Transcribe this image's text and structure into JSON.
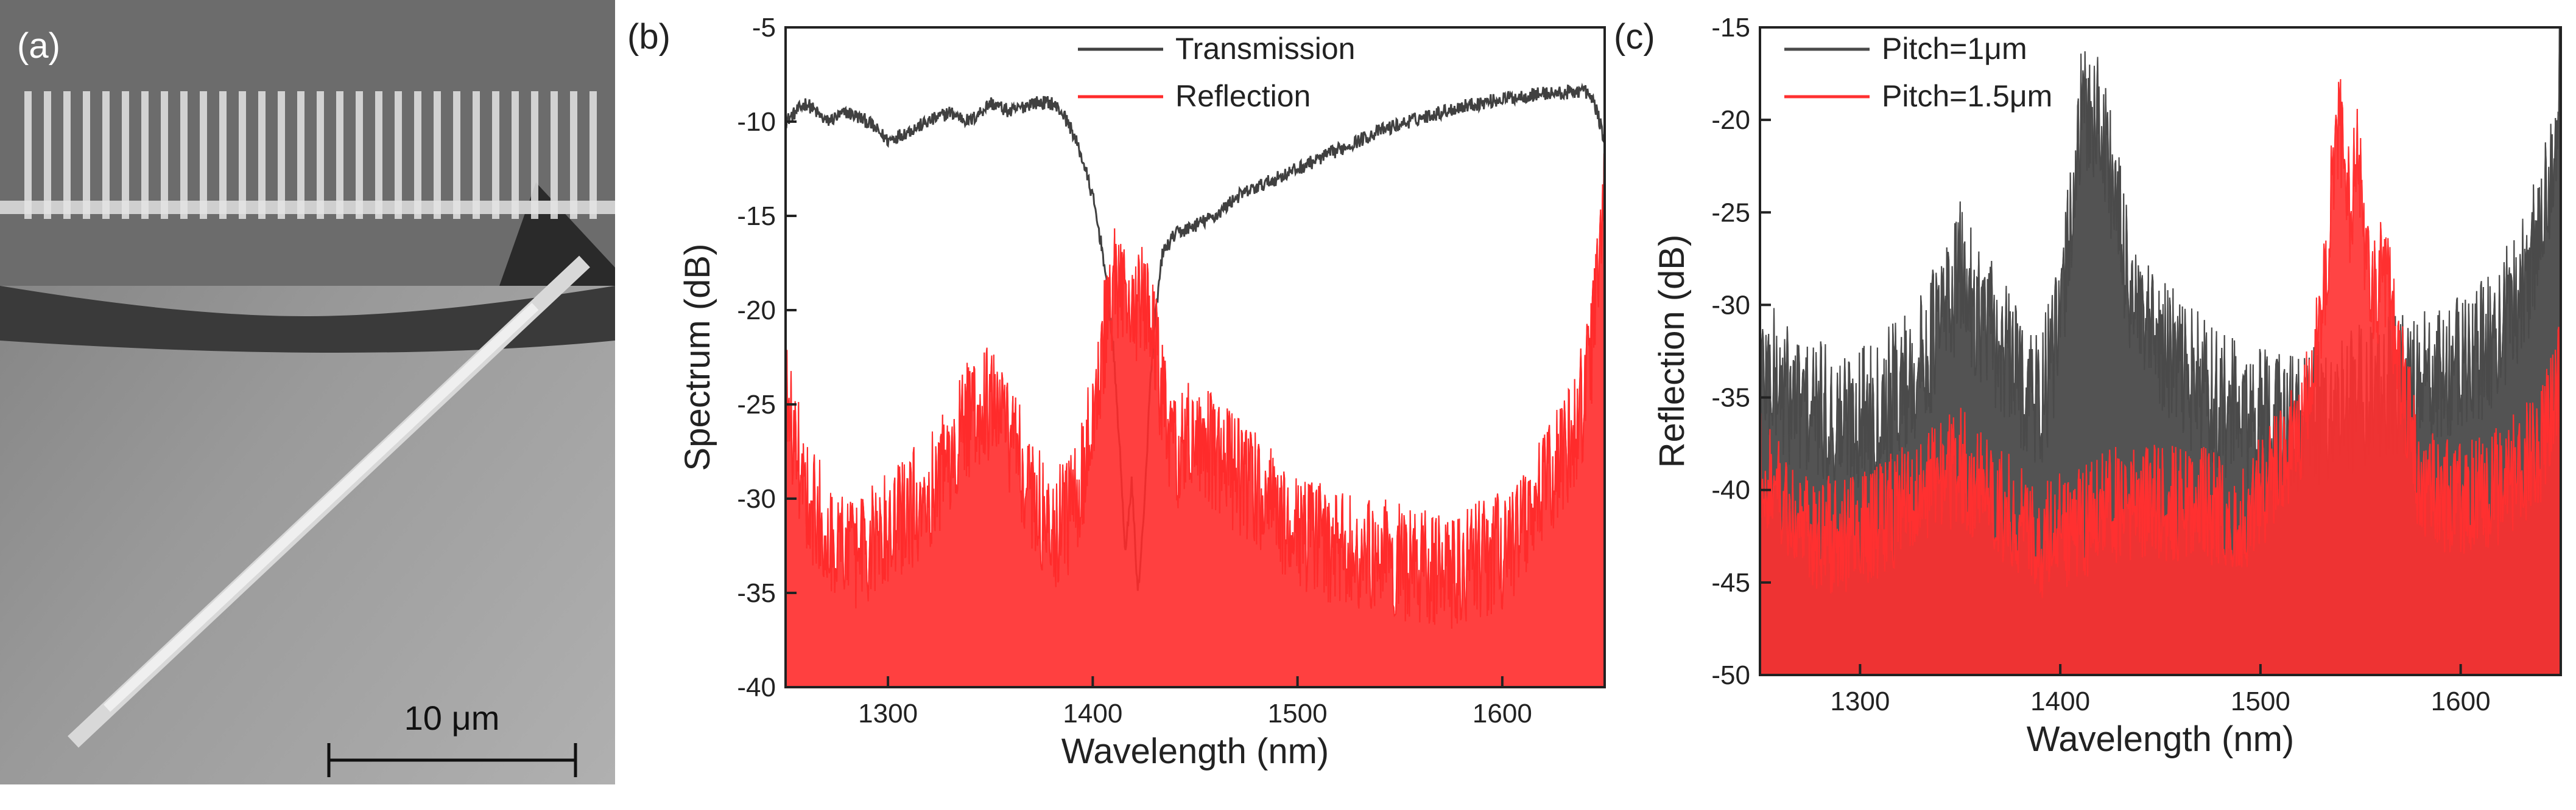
{
  "panel_labels": {
    "a": "(a)",
    "b": "(b)",
    "c": "(c)"
  },
  "sem": {
    "scale_bar_label": "10 μm",
    "description_icon": "sem-micrograph-image"
  },
  "colors": {
    "transmission": "#404040",
    "reflection": "#ff2b2b",
    "reflection_fill": "#ff3b3b",
    "pitch_1um": "#4a4a4a",
    "pitch_15um": "#ff3030",
    "axis": "#222222"
  },
  "chart_data": [
    {
      "id": "b",
      "type": "line",
      "title": "",
      "xlabel": "Wavelength (nm)",
      "ylabel": "Spectrum (dB)",
      "xlim": [
        1250,
        1650
      ],
      "ylim": [
        -40,
        -5
      ],
      "xticks": [
        1300,
        1400,
        1500,
        1600
      ],
      "yticks": [
        -40,
        -35,
        -30,
        -25,
        -20,
        -15,
        -10,
        -5
      ],
      "xtick_labels": [
        "1300",
        "1400",
        "1500",
        "1600"
      ],
      "ytick_labels": [
        "-40",
        "-35",
        "-30",
        "-25",
        "-20",
        "-15",
        "-10",
        "-5"
      ],
      "legend": [
        "Transmission",
        "Reflection"
      ],
      "legend_position": "top-center",
      "series": [
        {
          "name": "Transmission",
          "x": [
            1250,
            1260,
            1270,
            1280,
            1290,
            1300,
            1310,
            1320,
            1330,
            1340,
            1350,
            1360,
            1370,
            1380,
            1385,
            1390,
            1395,
            1400,
            1405,
            1410,
            1413,
            1416,
            1419,
            1422,
            1425,
            1428,
            1431,
            1434,
            1440,
            1450,
            1460,
            1470,
            1480,
            1490,
            1500,
            1520,
            1540,
            1560,
            1580,
            1600,
            1620,
            1630,
            1640,
            1645,
            1650
          ],
          "y": [
            -10,
            -9,
            -10,
            -9.5,
            -10,
            -11,
            -10.5,
            -10,
            -9.5,
            -10,
            -9,
            -9.5,
            -9,
            -9,
            -9.5,
            -10.5,
            -12,
            -14,
            -17,
            -22,
            -27,
            -33,
            -29,
            -35,
            -31,
            -24,
            -20,
            -17,
            -16,
            -15.5,
            -15,
            -14,
            -13.5,
            -13,
            -12.5,
            -11.5,
            -10.5,
            -9.8,
            -9.2,
            -8.8,
            -8.5,
            -8.5,
            -8.3,
            -9,
            -11
          ],
          "noise": 1.5
        },
        {
          "name": "Reflection",
          "x": [
            1250,
            1260,
            1270,
            1280,
            1290,
            1300,
            1310,
            1320,
            1330,
            1340,
            1350,
            1360,
            1370,
            1380,
            1390,
            1395,
            1400,
            1405,
            1410,
            1415,
            1420,
            1425,
            1430,
            1435,
            1440,
            1450,
            1460,
            1470,
            1480,
            1490,
            1500,
            1520,
            1540,
            1560,
            1580,
            1600,
            1610,
            1620,
            1630,
            1640,
            1645,
            1650
          ],
          "y": [
            -26,
            -31,
            -33,
            -34,
            -34,
            -33,
            -32,
            -31,
            -29,
            -27,
            -26,
            -28,
            -31,
            -33,
            -32,
            -30,
            -27,
            -23,
            -20,
            -21,
            -21.5,
            -20.5,
            -23,
            -27,
            -29,
            -28,
            -29,
            -30,
            -31,
            -32,
            -33,
            -34,
            -34,
            -35,
            -35,
            -34,
            -33,
            -31,
            -29,
            -26,
            -22,
            -14
          ],
          "noise": 4,
          "filled": true
        }
      ]
    },
    {
      "id": "c",
      "type": "line",
      "title": "",
      "xlabel": "Wavelength (nm)",
      "ylabel": "Reflection (dB)",
      "xlim": [
        1250,
        1650
      ],
      "ylim": [
        -50,
        -15
      ],
      "xticks": [
        1300,
        1400,
        1500,
        1600
      ],
      "yticks": [
        -50,
        -45,
        -40,
        -35,
        -30,
        -25,
        -20,
        -15
      ],
      "xtick_labels": [
        "1300",
        "1400",
        "1500",
        "1600"
      ],
      "ytick_labels": [
        "-50",
        "-45",
        "-40",
        "-35",
        "-30",
        "-25",
        "-20",
        "-15"
      ],
      "legend": [
        "Pitch=1μm",
        "Pitch=1.5μm"
      ],
      "legend_position": "top-left",
      "series": [
        {
          "name": "Pitch=1μm",
          "x": [
            1250,
            1270,
            1290,
            1310,
            1330,
            1350,
            1370,
            1390,
            1400,
            1405,
            1410,
            1415,
            1420,
            1425,
            1430,
            1440,
            1460,
            1480,
            1500,
            1520,
            1540,
            1560,
            1580,
            1600,
            1620,
            1640,
            1650
          ],
          "y": [
            -35,
            -37,
            -38,
            -37,
            -35,
            -30,
            -34,
            -37,
            -33,
            -27,
            -22,
            -21,
            -22,
            -24,
            -28,
            -33,
            -35,
            -37,
            -38,
            -38,
            -37,
            -36,
            -36,
            -35,
            -33,
            -28,
            -19
          ],
          "noise": 5,
          "filled": true
        },
        {
          "name": "Pitch=1.5μm",
          "x": [
            1250,
            1270,
            1290,
            1310,
            1330,
            1350,
            1370,
            1390,
            1410,
            1430,
            1450,
            1470,
            1490,
            1510,
            1520,
            1530,
            1535,
            1540,
            1545,
            1548,
            1551,
            1555,
            1560,
            1565,
            1570,
            1580,
            1600,
            1620,
            1640,
            1650
          ],
          "y": [
            -40,
            -43,
            -44,
            -43,
            -41,
            -40,
            -42,
            -44,
            -43,
            -42,
            -42,
            -42,
            -43,
            -40,
            -38,
            -33,
            -26,
            -21.5,
            -27,
            -22,
            -27,
            -31,
            -30,
            -31,
            -35,
            -41,
            -42,
            -41,
            -39,
            -35
          ],
          "noise": 4,
          "filled": true
        }
      ]
    }
  ]
}
